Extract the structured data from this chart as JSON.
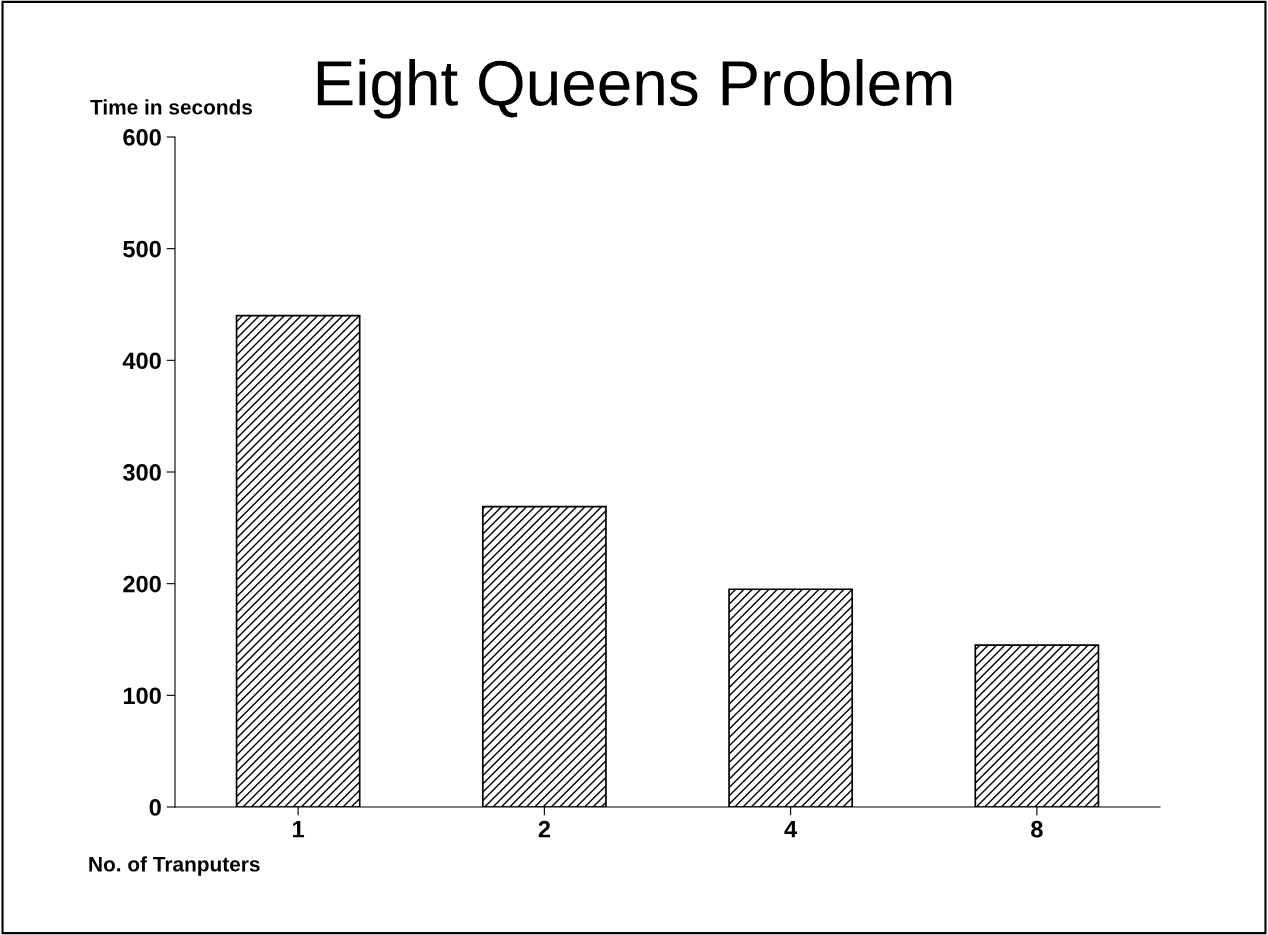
{
  "chart_data": {
    "type": "bar",
    "title": "Eight Queens Problem",
    "ylabel": "Time in seconds",
    "xlabel": "No. of Tranputers",
    "categories": [
      "1",
      "2",
      "4",
      "8"
    ],
    "values": [
      440,
      269,
      195,
      145
    ],
    "color": "#000000",
    "ylim": [
      0,
      600
    ],
    "yticks": [
      0,
      100,
      200,
      300,
      400,
      500,
      600
    ],
    "grid": false
  }
}
